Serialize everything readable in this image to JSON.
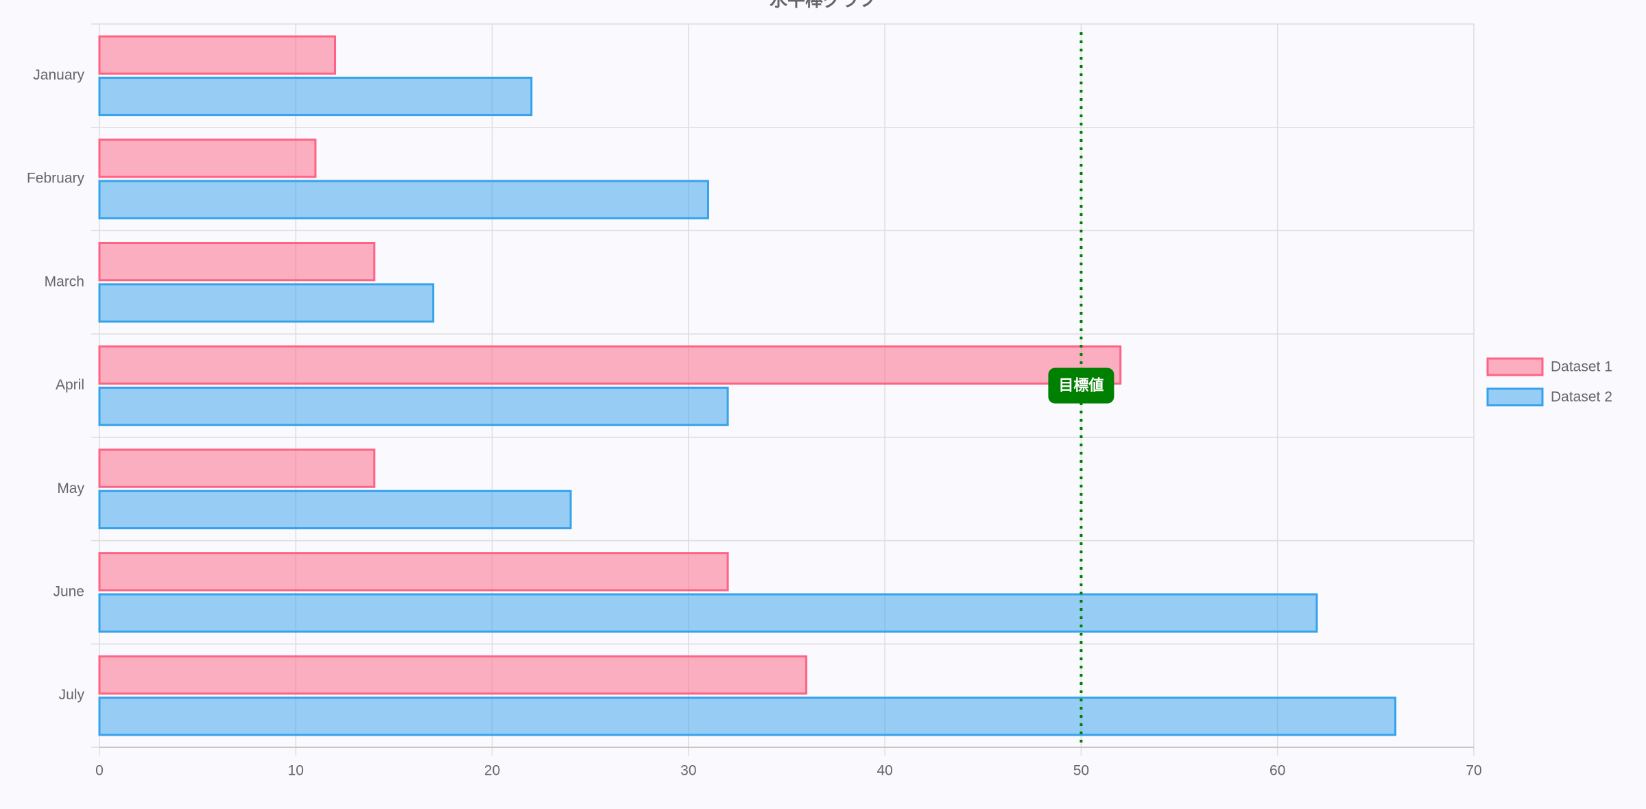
{
  "chart_data": {
    "type": "hbar",
    "title": "水平棒グラフ",
    "categories": [
      "January",
      "February",
      "March",
      "April",
      "May",
      "June",
      "July"
    ],
    "series": [
      {
        "name": "Dataset 1",
        "color": "rgb(255, 99, 132)",
        "values": [
          12,
          11,
          14,
          52,
          14,
          32,
          36
        ]
      },
      {
        "name": "Dataset 2",
        "color": "rgb(54, 162, 235)",
        "values": [
          22,
          31,
          17,
          32,
          24,
          62,
          66
        ]
      }
    ],
    "xlim": [
      0,
      70
    ],
    "xticks": [
      0,
      10,
      20,
      30,
      40,
      50,
      60,
      70
    ],
    "grid": true,
    "legend": "right",
    "annotation": {
      "value": 50,
      "label": "目標値",
      "color": "green"
    }
  }
}
